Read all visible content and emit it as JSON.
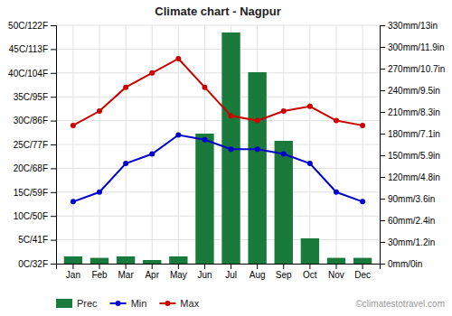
{
  "chart_data": {
    "type": "combo",
    "title": "Climate chart - Nagpur",
    "categories": [
      "Jan",
      "Feb",
      "Mar",
      "Apr",
      "May",
      "Jun",
      "Jul",
      "Aug",
      "Sep",
      "Oct",
      "Nov",
      "Dec"
    ],
    "series": [
      {
        "name": "Prec",
        "type": "bar",
        "axis": "y2",
        "color": "#1a7a3c",
        "values": [
          10,
          8,
          10,
          5,
          10,
          180,
          320,
          265,
          170,
          35,
          8,
          8
        ]
      },
      {
        "name": "Min",
        "type": "line",
        "color": "#0000cc",
        "marker": "circle",
        "values": [
          13,
          15,
          21,
          23,
          27,
          26,
          24,
          24,
          23,
          21,
          15,
          13
        ]
      },
      {
        "name": "Max",
        "type": "line",
        "color": "#cc0000",
        "marker": "circle",
        "values": [
          29,
          32,
          37,
          40,
          43,
          37,
          31,
          30,
          32,
          33,
          30,
          29
        ]
      }
    ],
    "ylim": [
      0,
      50
    ],
    "yticks": [
      {
        "value": 0,
        "label": "0C/32F"
      },
      {
        "value": 5,
        "label": "5C/41F"
      },
      {
        "value": 10,
        "label": "10C/50F"
      },
      {
        "value": 15,
        "label": "15C/59F"
      },
      {
        "value": 20,
        "label": "20C/68F"
      },
      {
        "value": 25,
        "label": "25C/77F"
      },
      {
        "value": 30,
        "label": "30C/86F"
      },
      {
        "value": 35,
        "label": "35C/95F"
      },
      {
        "value": 40,
        "label": "40C/104F"
      },
      {
        "value": 45,
        "label": "45C/113F"
      },
      {
        "value": 50,
        "label": "50C/122F"
      }
    ],
    "y2lim": [
      0,
      330
    ],
    "y2ticks": [
      {
        "value": 0,
        "label": "0mm/0in"
      },
      {
        "value": 30,
        "label": "30mm/1.2in"
      },
      {
        "value": 60,
        "label": "60mm/2.4in"
      },
      {
        "value": 90,
        "label": "90mm/3.6in"
      },
      {
        "value": 120,
        "label": "120mm/4.8in"
      },
      {
        "value": 150,
        "label": "150mm/5.9in"
      },
      {
        "value": 180,
        "label": "180mm/7.1in"
      },
      {
        "value": 210,
        "label": "210mm/8.3in"
      },
      {
        "value": 240,
        "label": "240mm/9.5in"
      },
      {
        "value": 270,
        "label": "270mm/10.7in"
      },
      {
        "value": 300,
        "label": "300mm/11.9in"
      },
      {
        "value": 330,
        "label": "330mm/13in"
      }
    ],
    "grid": true,
    "legend": "bottom-left",
    "annotations": [
      "©climatestotravel.com"
    ]
  }
}
